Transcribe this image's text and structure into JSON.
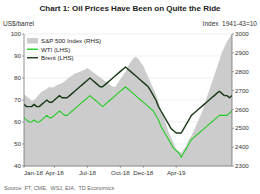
{
  "chart_data": {
    "type": "line",
    "title": "Chart 1: Oil Prices Have Been on Quite the Ride",
    "y_label": "US$/barrel",
    "y2_label": "Index  1941-43=10",
    "source": "Source: FT, CME,  WSJ, EIA,  TD Economics",
    "categories": [
      "Jan-18",
      null,
      null,
      null,
      null,
      null,
      null,
      null,
      null,
      null,
      null,
      null,
      "Apr-18",
      null,
      null,
      null,
      null,
      null,
      null,
      null,
      null,
      null,
      null,
      null,
      null,
      "Jul-18",
      null,
      null,
      null,
      null,
      null,
      null,
      null,
      null,
      null,
      null,
      null,
      null,
      "Oct-18",
      null,
      null,
      null,
      null,
      null,
      null,
      null,
      null,
      "Dec-18",
      null,
      null,
      null,
      null,
      null,
      null,
      null,
      null,
      null,
      null,
      null,
      null,
      "Apr-19",
      null,
      null,
      null,
      null,
      null,
      null,
      null,
      null,
      null,
      null,
      null,
      null,
      null,
      null,
      null,
      null,
      null,
      null,
      null,
      null,
      null,
      null
    ],
    "ylim": [
      40,
      100
    ],
    "yticks": [
      40,
      50,
      60,
      70,
      80,
      90,
      100
    ],
    "y2lim": [
      2300,
      3000
    ],
    "y2ticks": [
      2300,
      2400,
      2500,
      2600,
      2700,
      2800,
      2900,
      3000
    ],
    "grid": true,
    "legend": "upper left",
    "series": [
      {
        "name": "S&P 500 Index (RHS)",
        "type": "area",
        "axis": "y2",
        "color": "#cccccc",
        "values": [
          2680,
          2670,
          2660,
          2645,
          2650,
          2665,
          2680,
          2695,
          2700,
          2710,
          2720,
          2715,
          2720,
          2730,
          2735,
          2740,
          2750,
          2760,
          2770,
          2780,
          2790,
          2795,
          2800,
          2805,
          2810,
          2820,
          2810,
          2800,
          2790,
          2780,
          2770,
          2760,
          2750,
          2740,
          2730,
          2720,
          2720,
          2740,
          2760,
          2780,
          2800,
          2830,
          2850,
          2870,
          2880,
          2870,
          2850,
          2830,
          2800,
          2770,
          2740,
          2710,
          2680,
          2640,
          2600,
          2560,
          2520,
          2480,
          2450,
          2420,
          2390,
          2380,
          2370,
          2390,
          2410,
          2440,
          2460,
          2490,
          2520,
          2550,
          2580,
          2620,
          2660,
          2700,
          2740,
          2780,
          2820,
          2860,
          2900,
          2930,
          2960,
          2980,
          3000
        ]
      },
      {
        "name": "WTI (LHS)",
        "type": "line",
        "color": "#22cc22",
        "values": [
          62,
          61,
          60,
          60,
          61,
          60,
          60,
          61,
          62,
          63,
          62,
          62,
          63,
          64,
          65,
          64,
          63,
          63,
          64,
          65,
          66,
          67,
          68,
          69,
          70,
          71,
          72,
          71,
          70,
          69,
          68,
          67,
          68,
          69,
          70,
          71,
          72,
          73,
          74,
          75,
          76,
          75,
          74,
          73,
          72,
          71,
          70,
          69,
          68,
          67,
          66,
          65,
          63,
          61,
          58,
          56,
          54,
          52,
          50,
          48,
          47,
          46,
          44,
          46,
          48,
          50,
          52,
          53,
          54,
          55,
          56,
          57,
          58,
          59,
          60,
          61,
          62,
          63,
          63,
          63,
          63,
          64,
          65
        ]
      },
      {
        "name": "Brent (LHS)",
        "type": "line",
        "color": "#1a3a1a",
        "values": [
          68,
          67,
          67,
          67,
          68,
          67,
          67,
          68,
          69,
          70,
          69,
          69,
          70,
          71,
          72,
          71,
          71,
          71,
          72,
          73,
          74,
          75,
          76,
          77,
          78,
          79,
          80,
          79,
          78,
          77,
          76,
          76,
          77,
          78,
          79,
          80,
          81,
          82,
          83,
          84,
          85,
          84,
          83,
          82,
          81,
          80,
          79,
          78,
          77,
          76,
          74,
          72,
          70,
          67,
          65,
          63,
          61,
          59,
          57,
          56,
          55,
          55,
          55,
          57,
          59,
          61,
          63,
          64,
          65,
          66,
          67,
          68,
          69,
          70,
          71,
          72,
          73,
          74,
          73,
          72,
          72,
          71,
          72
        ]
      }
    ]
  }
}
